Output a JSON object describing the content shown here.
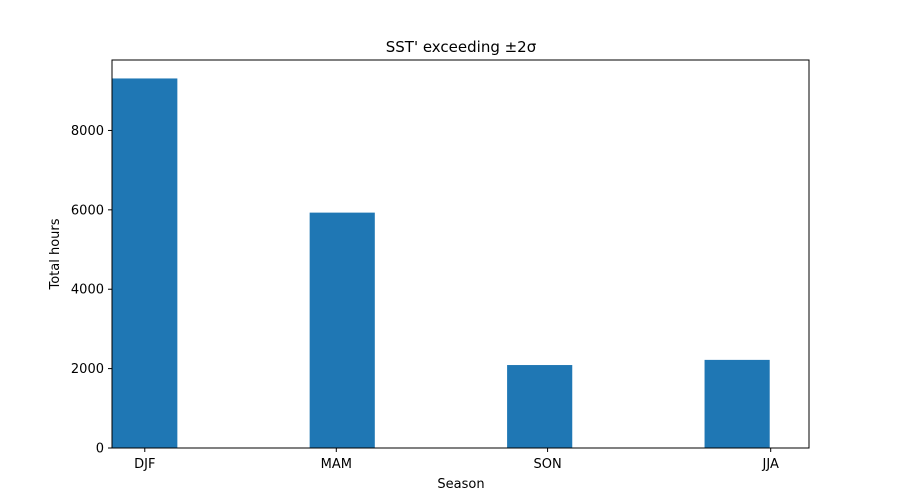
{
  "chart_data": {
    "type": "bar",
    "title": "SST' exceeding ±2σ",
    "xlabel": "Season",
    "ylabel": "Total hours",
    "categories": [
      "DJF",
      "MAM",
      "SON",
      "JJA"
    ],
    "values": [
      9310,
      5930,
      2090,
      2220
    ],
    "yticks": [
      0,
      2000,
      4000,
      6000,
      8000
    ],
    "ylim": [
      0,
      9775
    ],
    "xticks": [
      0,
      4.85,
      10.2,
      15.85
    ],
    "xlim": [
      -0.83,
      16.82
    ],
    "bar_x": [
      0,
      5,
      10,
      15
    ],
    "bar_width": 1.65,
    "bar_color": "#1f77b4",
    "grid": false,
    "legend": "none"
  }
}
